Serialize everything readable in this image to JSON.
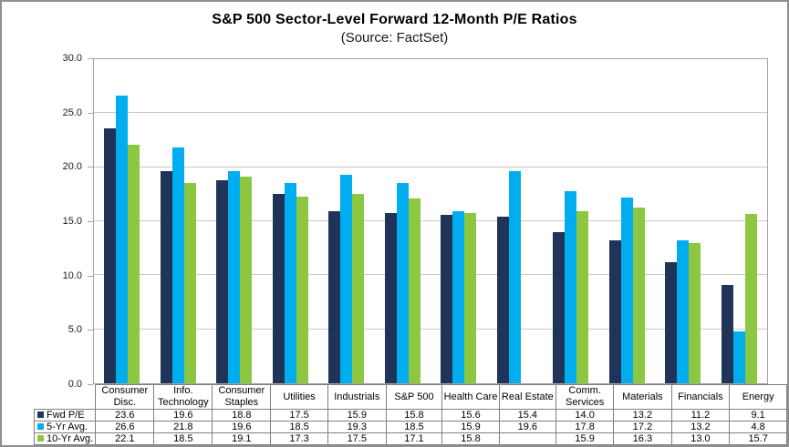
{
  "chart_data": {
    "type": "bar",
    "title": "S&P 500 Sector-Level Forward 12-Month P/E Ratios",
    "subtitle": "(Source: FactSet)",
    "categories": [
      "Consumer Disc.",
      "Info. Technology",
      "Consumer Staples",
      "Utilities",
      "Industrials",
      "S&P 500",
      "Health Care",
      "Real Estate",
      "Comm. Services",
      "Materials",
      "Financials",
      "Energy"
    ],
    "series": [
      {
        "name": "Fwd P/E",
        "color": "#203459",
        "values": [
          23.6,
          19.6,
          18.8,
          17.5,
          15.9,
          15.8,
          15.6,
          15.4,
          14.0,
          13.2,
          11.2,
          9.1
        ]
      },
      {
        "name": "5-Yr Avg.",
        "color": "#00AEEF",
        "values": [
          26.6,
          21.8,
          19.6,
          18.5,
          19.3,
          18.5,
          15.9,
          19.6,
          17.8,
          17.2,
          13.2,
          4.8
        ]
      },
      {
        "name": "10-Yr Avg.",
        "color": "#8DC63F",
        "values": [
          22.1,
          18.5,
          19.1,
          17.3,
          17.5,
          17.1,
          15.8,
          null,
          15.9,
          16.3,
          13.0,
          15.7
        ]
      }
    ],
    "ylim": [
      0,
      30
    ],
    "ytick_step": 5,
    "ytick_labels": [
      "30.0",
      "25.0",
      "20.0",
      "15.0",
      "10.0",
      "5.0",
      "0.0"
    ],
    "grid": true,
    "legend_position": "table-left-column",
    "colors": {
      "grid": "#C9C9C9",
      "plot_border": "#A3A3A3",
      "table_border": "#7F7F7F",
      "frame_border": "#8F8F8F",
      "text": "#000000"
    }
  }
}
